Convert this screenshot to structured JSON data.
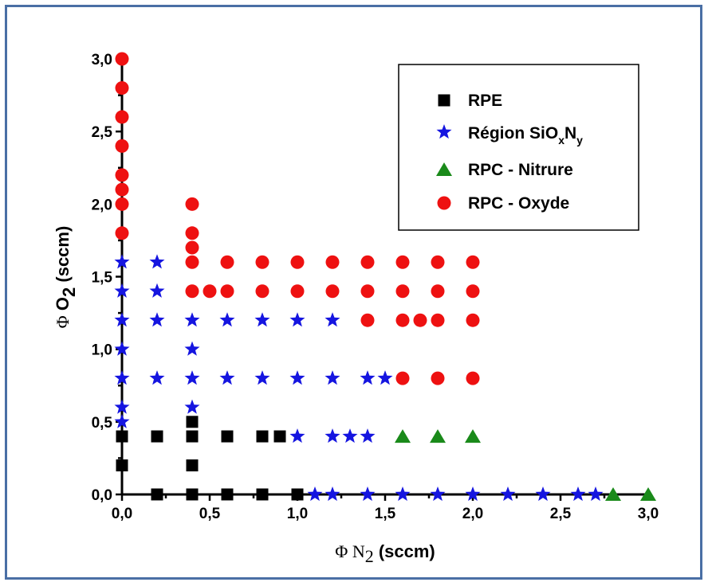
{
  "chart_data": {
    "type": "scatter",
    "xlabel": {
      "prefix": "Φ",
      "main": " N",
      "sub": "2",
      "suffix": " (sccm)"
    },
    "ylabel": {
      "prefix": "Φ",
      "main": " O",
      "sub": "2",
      "suffix": " (sccm)"
    },
    "xlim": [
      0,
      3
    ],
    "ylim": [
      0,
      3
    ],
    "xticks": [
      "0,0",
      "0,5",
      "1,0",
      "1,5",
      "2,0",
      "2,5",
      "3,0"
    ],
    "yticks": [
      "0,0",
      "0,5",
      "1,0",
      "1,5",
      "2,0",
      "2,5",
      "3,0"
    ],
    "grid": false,
    "legend_position": "top-right",
    "series": [
      {
        "name": "RPE",
        "name_parts": {
          "text": "RPE"
        },
        "marker": "square",
        "color": "#000000",
        "points": [
          [
            0,
            0.2
          ],
          [
            0,
            0.4
          ],
          [
            0.2,
            0.4
          ],
          [
            0.4,
            0.4
          ],
          [
            0.6,
            0.4
          ],
          [
            0.8,
            0.4
          ],
          [
            0.9,
            0.4
          ],
          [
            0.4,
            0.5
          ],
          [
            0.4,
            0.2
          ],
          [
            0.2,
            0
          ],
          [
            0.4,
            0
          ],
          [
            0.6,
            0
          ],
          [
            0.8,
            0
          ],
          [
            1.0,
            0
          ]
        ]
      },
      {
        "name": "Région SiOxNy",
        "name_parts": {
          "text": "Région SiO",
          "sub1": "x",
          "mid": "N",
          "sub2": "y"
        },
        "marker": "star",
        "color": "#1515e0",
        "points": [
          [
            0,
            0.5
          ],
          [
            0,
            0.6
          ],
          [
            0,
            0.8
          ],
          [
            0,
            1.0
          ],
          [
            0,
            1.2
          ],
          [
            0,
            1.4
          ],
          [
            0,
            1.6
          ],
          [
            0.2,
            0.8
          ],
          [
            0.2,
            1.2
          ],
          [
            0.2,
            1.4
          ],
          [
            0.2,
            1.6
          ],
          [
            0.4,
            0.6
          ],
          [
            0.4,
            0.8
          ],
          [
            0.4,
            1.0
          ],
          [
            0.4,
            1.2
          ],
          [
            0.6,
            0.8
          ],
          [
            0.6,
            1.2
          ],
          [
            0.8,
            0.8
          ],
          [
            0.8,
            1.2
          ],
          [
            1.0,
            0.8
          ],
          [
            1.0,
            1.2
          ],
          [
            1.2,
            0.8
          ],
          [
            1.2,
            1.2
          ],
          [
            1.4,
            0.8
          ],
          [
            1.5,
            0.8
          ],
          [
            1.0,
            0.4
          ],
          [
            1.2,
            0.4
          ],
          [
            1.3,
            0.4
          ],
          [
            1.4,
            0.4
          ],
          [
            1.1,
            0
          ],
          [
            1.2,
            0
          ],
          [
            1.4,
            0
          ],
          [
            1.6,
            0
          ],
          [
            1.8,
            0
          ],
          [
            2.0,
            0
          ],
          [
            2.2,
            0
          ],
          [
            2.4,
            0
          ],
          [
            2.6,
            0
          ],
          [
            2.7,
            0
          ]
        ]
      },
      {
        "name": "RPC - Nitrure",
        "name_parts": {
          "text": "RPC - Nitrure"
        },
        "marker": "triangle",
        "color": "#1a8a1a",
        "points": [
          [
            1.6,
            0.4
          ],
          [
            1.8,
            0.4
          ],
          [
            2.0,
            0.4
          ],
          [
            2.8,
            0
          ],
          [
            3.0,
            0
          ]
        ]
      },
      {
        "name": "RPC - Oxyde",
        "name_parts": {
          "text": "RPC - Oxyde"
        },
        "marker": "circle",
        "color": "#ee1111",
        "points": [
          [
            0,
            1.8
          ],
          [
            0,
            2.0
          ],
          [
            0,
            2.1
          ],
          [
            0,
            2.2
          ],
          [
            0,
            2.4
          ],
          [
            0,
            2.6
          ],
          [
            0,
            2.8
          ],
          [
            0,
            3.0
          ],
          [
            0.4,
            1.4
          ],
          [
            0.4,
            1.6
          ],
          [
            0.4,
            1.7
          ],
          [
            0.4,
            1.8
          ],
          [
            0.4,
            2.0
          ],
          [
            0.5,
            1.4
          ],
          [
            0.6,
            1.4
          ],
          [
            0.6,
            1.6
          ],
          [
            0.8,
            1.4
          ],
          [
            0.8,
            1.6
          ],
          [
            1.0,
            1.4
          ],
          [
            1.0,
            1.6
          ],
          [
            1.2,
            1.4
          ],
          [
            1.2,
            1.6
          ],
          [
            1.4,
            1.2
          ],
          [
            1.4,
            1.4
          ],
          [
            1.4,
            1.6
          ],
          [
            1.6,
            0.8
          ],
          [
            1.6,
            1.2
          ],
          [
            1.6,
            1.4
          ],
          [
            1.6,
            1.6
          ],
          [
            1.7,
            1.2
          ],
          [
            1.8,
            0.8
          ],
          [
            1.8,
            1.2
          ],
          [
            1.8,
            1.4
          ],
          [
            1.8,
            1.6
          ],
          [
            2.0,
            0.8
          ],
          [
            2.0,
            1.2
          ],
          [
            2.0,
            1.4
          ],
          [
            2.0,
            1.6
          ]
        ]
      }
    ]
  }
}
